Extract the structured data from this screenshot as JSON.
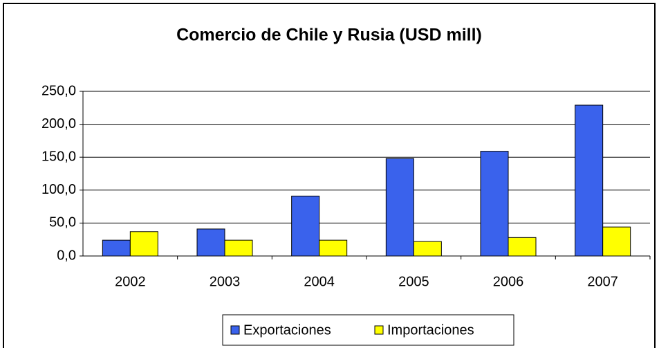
{
  "chart_data": {
    "type": "bar",
    "title": "Comercio de Chile y Rusia (USD mill)",
    "categories": [
      "2002",
      "2003",
      "2004",
      "2005",
      "2006",
      "2007"
    ],
    "series": [
      {
        "name": "Exportaciones",
        "color": "#3a62ec",
        "values": [
          24,
          41,
          91,
          148,
          159,
          229
        ]
      },
      {
        "name": "Importaciones",
        "color": "#ffff00",
        "values": [
          37,
          24,
          24,
          22,
          28,
          44
        ]
      }
    ],
    "ylim": [
      0,
      250
    ],
    "yticks": [
      {
        "value": 0,
        "label": "0,0"
      },
      {
        "value": 50,
        "label": "50,0"
      },
      {
        "value": 100,
        "label": "100,0"
      },
      {
        "value": 150,
        "label": "150,0"
      },
      {
        "value": 200,
        "label": "200,0"
      },
      {
        "value": 250,
        "label": "250,0"
      }
    ],
    "grid": true,
    "legend": "bottom"
  }
}
